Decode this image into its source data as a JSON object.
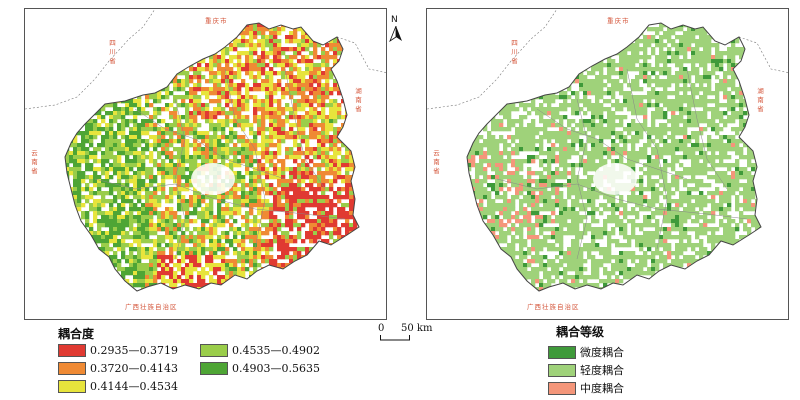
{
  "map_left": {
    "neighbors": {
      "chongqing": "重庆市",
      "sichuan": "四川省",
      "hunan": "湖南省",
      "yunnan": "云南省",
      "guangxi": "广西壮族自治区"
    },
    "legend": {
      "title": "耦合度",
      "classes": [
        {
          "label": "0.2935—0.3719",
          "color": "#e03a32"
        },
        {
          "label": "0.3720—0.4143",
          "color": "#ef8a34"
        },
        {
          "label": "0.4144—0.4534",
          "color": "#e7e43c"
        },
        {
          "label": "0.4535—0.4902",
          "color": "#9acd4a"
        },
        {
          "label": "0.4903—0.5635",
          "color": "#4ea535"
        }
      ]
    }
  },
  "map_right": {
    "neighbors": {
      "chongqing": "重庆市",
      "sichuan": "四川省",
      "hunan": "湖南省",
      "yunnan": "云南省",
      "guangxi": "广西壮族自治区"
    },
    "legend": {
      "title": "耦合等级",
      "classes": [
        {
          "label": "微度耦合",
          "color": "#3f9a3a"
        },
        {
          "label": "轻度耦合",
          "color": "#9fd27a"
        },
        {
          "label": "中度耦合",
          "color": "#f4967a"
        }
      ]
    }
  },
  "north_arrow": "N",
  "scale_bar": {
    "start": "0",
    "end": "50 km"
  }
}
